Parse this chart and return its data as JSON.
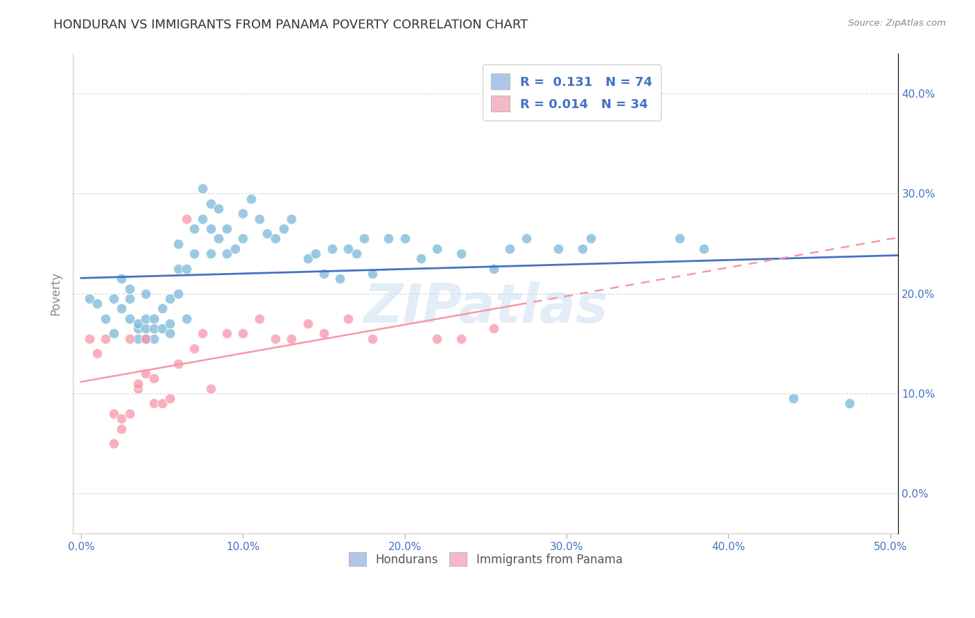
{
  "title": "HONDURAN VS IMMIGRANTS FROM PANAMA POVERTY CORRELATION CHART",
  "source": "Source: ZipAtlas.com",
  "xlabel_ticks": [
    "0.0%",
    "10.0%",
    "20.0%",
    "30.0%",
    "40.0%",
    "50.0%"
  ],
  "xlabel_vals": [
    0.0,
    0.1,
    0.2,
    0.3,
    0.4,
    0.5
  ],
  "ylabel_right_ticks": [
    "0.0%",
    "10.0%",
    "20.0%",
    "30.0%",
    "40.0%"
  ],
  "ylabel_right_vals": [
    0.0,
    0.1,
    0.2,
    0.3,
    0.4
  ],
  "xlim": [
    -0.005,
    0.505
  ],
  "ylim": [
    -0.04,
    0.44
  ],
  "watermark": "ZIPatlas",
  "legend_entries": [
    {
      "label": "R =  0.131   N = 74",
      "color": "#aec6e8"
    },
    {
      "label": "R = 0.014   N = 34",
      "color": "#f4b8c8"
    }
  ],
  "honduran_color": "#7ab8d9",
  "panama_color": "#f896a8",
  "honduran_line_color": "#4472c4",
  "panama_line_color": "#f896a8",
  "background_color": "#ffffff",
  "grid_color": "#d9d9d9",
  "hondurans_x": [
    0.005,
    0.01,
    0.015,
    0.02,
    0.02,
    0.025,
    0.025,
    0.03,
    0.03,
    0.03,
    0.035,
    0.035,
    0.035,
    0.04,
    0.04,
    0.04,
    0.04,
    0.045,
    0.045,
    0.045,
    0.05,
    0.05,
    0.055,
    0.055,
    0.055,
    0.06,
    0.06,
    0.06,
    0.065,
    0.065,
    0.07,
    0.07,
    0.075,
    0.075,
    0.08,
    0.08,
    0.08,
    0.085,
    0.085,
    0.09,
    0.09,
    0.095,
    0.1,
    0.1,
    0.105,
    0.11,
    0.115,
    0.12,
    0.125,
    0.13,
    0.14,
    0.145,
    0.15,
    0.155,
    0.16,
    0.165,
    0.17,
    0.175,
    0.18,
    0.19,
    0.2,
    0.21,
    0.22,
    0.235,
    0.255,
    0.265,
    0.275,
    0.295,
    0.31,
    0.315,
    0.37,
    0.385,
    0.44,
    0.475
  ],
  "hondurans_y": [
    0.195,
    0.19,
    0.175,
    0.16,
    0.195,
    0.185,
    0.215,
    0.175,
    0.195,
    0.205,
    0.155,
    0.165,
    0.17,
    0.155,
    0.165,
    0.175,
    0.2,
    0.155,
    0.165,
    0.175,
    0.165,
    0.185,
    0.16,
    0.17,
    0.195,
    0.2,
    0.225,
    0.25,
    0.175,
    0.225,
    0.24,
    0.265,
    0.275,
    0.305,
    0.24,
    0.265,
    0.29,
    0.255,
    0.285,
    0.24,
    0.265,
    0.245,
    0.255,
    0.28,
    0.295,
    0.275,
    0.26,
    0.255,
    0.265,
    0.275,
    0.235,
    0.24,
    0.22,
    0.245,
    0.215,
    0.245,
    0.24,
    0.255,
    0.22,
    0.255,
    0.255,
    0.235,
    0.245,
    0.24,
    0.225,
    0.245,
    0.255,
    0.245,
    0.245,
    0.255,
    0.255,
    0.245,
    0.095,
    0.09
  ],
  "panama_x": [
    0.005,
    0.01,
    0.015,
    0.02,
    0.02,
    0.025,
    0.025,
    0.03,
    0.03,
    0.035,
    0.035,
    0.04,
    0.04,
    0.045,
    0.045,
    0.05,
    0.055,
    0.06,
    0.065,
    0.07,
    0.075,
    0.08,
    0.09,
    0.1,
    0.11,
    0.12,
    0.13,
    0.14,
    0.15,
    0.165,
    0.18,
    0.22,
    0.235,
    0.255
  ],
  "panama_y": [
    0.155,
    0.14,
    0.155,
    0.05,
    0.08,
    0.065,
    0.075,
    0.08,
    0.155,
    0.105,
    0.11,
    0.12,
    0.155,
    0.09,
    0.115,
    0.09,
    0.095,
    0.13,
    0.275,
    0.145,
    0.16,
    0.105,
    0.16,
    0.16,
    0.175,
    0.155,
    0.155,
    0.17,
    0.16,
    0.175,
    0.155,
    0.155,
    0.155,
    0.165
  ]
}
